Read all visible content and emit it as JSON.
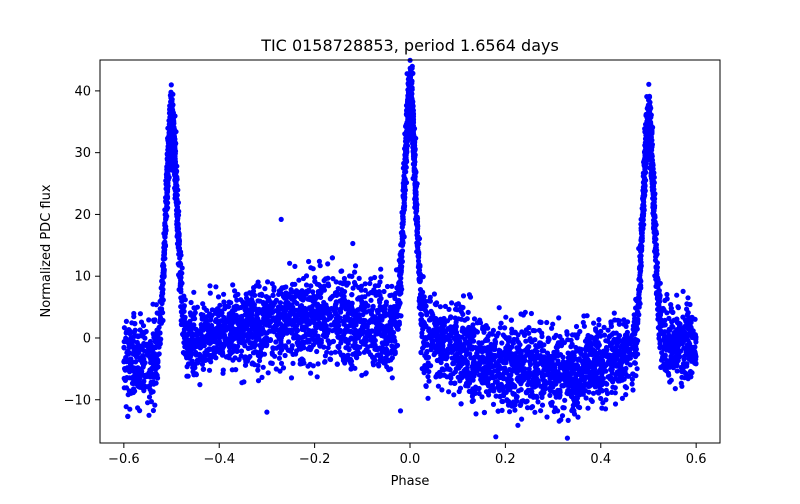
{
  "chart_data": {
    "type": "scatter",
    "title": "TIC 0158728853, period 1.6564 days",
    "xlabel": "Phase",
    "ylabel": "Normalized PDC flux",
    "xlim": [
      -0.65,
      0.65
    ],
    "ylim": [
      -17,
      45
    ],
    "xticks": [
      -0.6,
      -0.4,
      -0.2,
      0.0,
      0.2,
      0.4,
      0.6
    ],
    "xtick_labels": [
      "−0.6",
      "−0.4",
      "−0.2",
      "0.0",
      "0.2",
      "0.4",
      "0.6"
    ],
    "yticks": [
      -10,
      0,
      10,
      20,
      30,
      40
    ],
    "ytick_labels": [
      "−10",
      "0",
      "10",
      "20",
      "30",
      "40"
    ],
    "grid": false,
    "marker_color": "#0000ff",
    "phase_range": [
      -0.6,
      0.6
    ],
    "peaks": [
      {
        "phase": -0.5,
        "flux": 37.7
      },
      {
        "phase": 0.0,
        "flux": 42.2
      },
      {
        "phase": 0.5,
        "flux": 37.7
      }
    ],
    "envelope": [
      {
        "phase": -0.6,
        "upper": 4,
        "lower": -12
      },
      {
        "phase": -0.55,
        "upper": 4,
        "lower": -12
      },
      {
        "phase": -0.45,
        "upper": 6,
        "lower": -7
      },
      {
        "phase": -0.4,
        "upper": 8,
        "lower": -6
      },
      {
        "phase": -0.2,
        "upper": 12,
        "lower": -5
      },
      {
        "phase": -0.05,
        "upper": 10,
        "lower": -7
      },
      {
        "phase": 0.05,
        "upper": 7,
        "lower": -9
      },
      {
        "phase": 0.2,
        "upper": 4,
        "lower": -13
      },
      {
        "phase": 0.35,
        "upper": 2,
        "lower": -13
      },
      {
        "phase": 0.45,
        "upper": 4,
        "lower": -10
      },
      {
        "phase": 0.55,
        "upper": 6,
        "lower": -9
      },
      {
        "phase": 0.6,
        "upper": 7,
        "lower": -8
      }
    ],
    "outliers": [
      {
        "phase": -0.27,
        "flux": 19.2
      },
      {
        "phase": -0.12,
        "flux": 15.3
      },
      {
        "phase": -0.3,
        "flux": -12
      },
      {
        "phase": -0.02,
        "flux": -11.8
      },
      {
        "phase": 0.18,
        "flux": -16
      },
      {
        "phase": 0.33,
        "flux": -16.2
      }
    ]
  }
}
